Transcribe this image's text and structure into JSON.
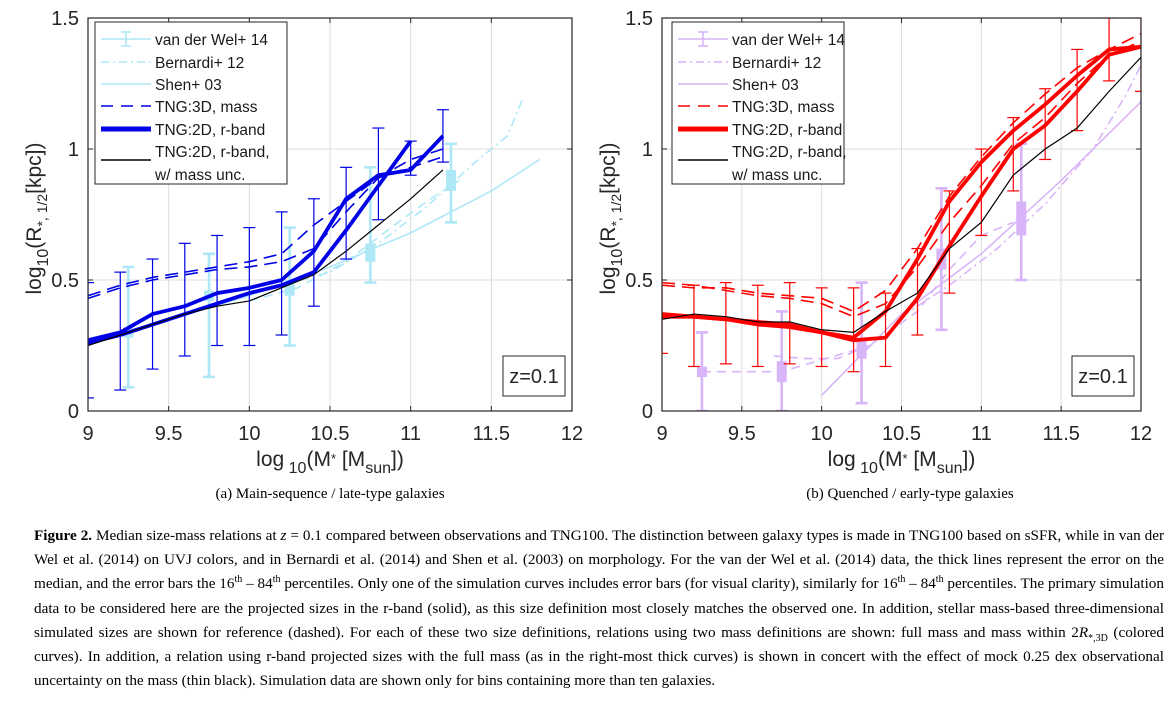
{
  "figure": {
    "subcaptions": [
      "(a) Main-sequence / late-type galaxies",
      "(b) Quenched / early-type galaxies"
    ],
    "caption": {
      "label": "Figure 2.",
      "text_parts": [
        "Median size-mass relations at ",
        "z",
        " = 0.1 compared between observations and TNG100. The distinction between galaxy types is made in TNG100 based on sSFR, while in van der Wel et al. (2014) on UVJ colors, and in Bernardi et al. (2014) and Shen et al. (2003) on morphology. For the van der Wel et al. (2014) data, the thick lines represent the error on the median, and the error bars the 16",
        "th",
        " – 84",
        "th",
        " percentiles. Only one of the simulation curves includes error bars (for visual clarity), similarly for 16",
        "th",
        " – 84",
        "th",
        " percentiles. The primary simulation data to be considered here are the projected sizes in the r-band (solid), as this size definition most closely matches the observed one. In addition, stellar mass-based three-dimensional simulated sizes are shown for reference (dashed). For each of these two size definitions, relations using two mass definitions are shown: full mass and mass within 2",
        "R",
        "*,3D",
        " (colored curves). In addition, a relation using r-band projected sizes with the full mass (as in the right-most thick curves) is shown in concert with the effect of mock 0.25 dex observational uncertainty on the mass (thin black). Simulation data are shown only for bins containing more than ten galaxies."
      ]
    }
  },
  "chart_data": [
    {
      "type": "line",
      "panel": "a",
      "title": "",
      "xlabel": "log10(M* [Msun])",
      "ylabel": "log10(R*,1/2[kpc])",
      "xlim": [
        9,
        12
      ],
      "ylim": [
        0,
        1.5
      ],
      "xticks": [
        "9",
        "9.5",
        "10",
        "10.5",
        "11",
        "11.5",
        "12"
      ],
      "yticks": [
        "0",
        "0.5",
        "1",
        "1.5"
      ],
      "grid": true,
      "legend_position": "top-left",
      "annotation": "z=0.1",
      "colors": {
        "sim": "#0000e6",
        "obs": "#aee8f7",
        "black": "#000000"
      },
      "legend": [
        "van der Wel+ 14",
        "Bernardi+ 12",
        "Shen+ 03",
        "TNG:3D, mass",
        "TNG:2D, r-band",
        "TNG:2D, r-band,",
        "w/ mass unc."
      ],
      "series": [
        {
          "name": "TNG:3D, mass (full)",
          "style": "dashed",
          "x": [
            9.0,
            9.2,
            9.4,
            9.6,
            9.8,
            10.0,
            10.2,
            10.4,
            10.6,
            10.8,
            11.0,
            11.2
          ],
          "y": [
            0.44,
            0.48,
            0.51,
            0.53,
            0.55,
            0.57,
            0.6,
            0.71,
            0.8,
            0.89,
            0.96,
            1.0
          ]
        },
        {
          "name": "TNG:3D, mass (2R)",
          "style": "dashed",
          "x": [
            9.0,
            9.2,
            9.4,
            9.6,
            9.8,
            10.0,
            10.2,
            10.4,
            10.6,
            10.8,
            11.0,
            11.2
          ],
          "y": [
            0.43,
            0.47,
            0.5,
            0.52,
            0.54,
            0.55,
            0.57,
            0.62,
            0.76,
            0.89,
            0.93,
            0.97
          ]
        },
        {
          "name": "TNG:2D, r-band (full)",
          "style": "thick",
          "x": [
            9.0,
            9.2,
            9.4,
            9.6,
            9.8,
            10.0,
            10.2,
            10.4,
            10.6,
            10.8,
            11.0,
            11.2
          ],
          "y": [
            0.27,
            0.3,
            0.37,
            0.4,
            0.45,
            0.47,
            0.5,
            0.61,
            0.81,
            0.9,
            0.92,
            1.05
          ]
        },
        {
          "name": "TNG:2D, r-band (2R)",
          "style": "thick",
          "x": [
            9.0,
            9.2,
            9.4,
            9.6,
            9.8,
            10.0,
            10.2,
            10.4,
            10.6,
            10.8,
            11.0
          ],
          "y": [
            0.26,
            0.29,
            0.33,
            0.37,
            0.41,
            0.45,
            0.48,
            0.53,
            0.69,
            0.86,
            1.03
          ]
        },
        {
          "name": "TNG:2D, r-band, w/ mass unc.",
          "style": "black",
          "x": [
            9.0,
            9.2,
            9.4,
            9.6,
            9.8,
            10.0,
            10.2,
            10.4,
            10.6,
            10.8,
            11.0,
            11.2
          ],
          "y": [
            0.25,
            0.29,
            0.33,
            0.37,
            0.4,
            0.42,
            0.47,
            0.52,
            0.61,
            0.71,
            0.81,
            0.92
          ]
        },
        {
          "name": "Shen+ 03",
          "style": "obs-solid",
          "x": [
            9.0,
            9.5,
            10.0,
            10.5,
            11.0,
            11.5,
            11.8
          ],
          "y": [
            0.26,
            0.35,
            0.44,
            0.55,
            0.68,
            0.84,
            0.96
          ]
        },
        {
          "name": "Bernardi+ 12 (dashed)",
          "style": "obs-dashed",
          "x": [
            10.0,
            10.3,
            10.6,
            10.9,
            11.1,
            11.3
          ],
          "y": [
            0.42,
            0.47,
            0.57,
            0.71,
            0.8,
            0.88
          ]
        },
        {
          "name": "Bernardi+ 12 (dash-dot)",
          "style": "obs-dashdot",
          "x": [
            10.2,
            10.5,
            10.8,
            11.1,
            11.4,
            11.6,
            11.7
          ],
          "y": [
            0.48,
            0.53,
            0.64,
            0.78,
            0.95,
            1.05,
            1.2
          ]
        },
        {
          "name": "van der Wel+ 14",
          "style": "obs-errbar",
          "x": [
            9.25,
            9.75,
            10.25,
            10.75,
            11.25
          ],
          "y": [
            0.3,
            0.44,
            0.47,
            0.6,
            0.88
          ],
          "ylo": [
            0.09,
            0.13,
            0.25,
            0.49,
            0.72
          ],
          "yhi": [
            0.55,
            0.6,
            0.7,
            0.93,
            1.02
          ],
          "mlo": [
            0.28,
            0.42,
            0.44,
            0.57,
            0.84
          ],
          "mhi": [
            0.32,
            0.46,
            0.5,
            0.64,
            0.92
          ]
        },
        {
          "name": "TNG error bars",
          "style": "sim-errbar",
          "x": [
            9.0,
            9.2,
            9.4,
            9.6,
            9.8,
            10.0,
            10.2,
            10.4,
            10.6,
            10.8,
            11.0,
            11.2
          ],
          "ylo": [
            0.05,
            0.08,
            0.16,
            0.21,
            0.25,
            0.25,
            0.29,
            0.4,
            0.58,
            0.73,
            0.9,
            0.95
          ],
          "yhi": [
            0.49,
            0.53,
            0.58,
            0.64,
            0.67,
            0.7,
            0.76,
            0.81,
            0.93,
            1.08,
            1.03,
            1.15
          ]
        }
      ]
    },
    {
      "type": "line",
      "panel": "b",
      "title": "",
      "xlabel": "log10(M* [Msun])",
      "ylabel": "log10(R*,1/2[kpc])",
      "xlim": [
        9,
        12
      ],
      "ylim": [
        0,
        1.5
      ],
      "xticks": [
        "9",
        "9.5",
        "10",
        "10.5",
        "11",
        "11.5",
        "12"
      ],
      "yticks": [
        "0",
        "0.5",
        "1",
        "1.5"
      ],
      "grid": true,
      "legend_position": "top-left",
      "annotation": "z=0.1",
      "colors": {
        "sim": "#ff0000",
        "obs": "#d8b4f8",
        "black": "#000000"
      },
      "legend": [
        "van der Wel+ 14",
        "Bernardi+ 12",
        "Shen+ 03",
        "TNG:3D, mass",
        "TNG:2D, r-band",
        "TNG:2D, r-band,",
        "w/ mass unc."
      ],
      "series": [
        {
          "name": "TNG:3D, mass (full)",
          "style": "dashed",
          "x": [
            9.0,
            9.2,
            9.4,
            9.6,
            9.8,
            10.0,
            10.2,
            10.4,
            10.6,
            10.8,
            11.0,
            11.2,
            11.4,
            11.6,
            11.8,
            12.0
          ],
          "y": [
            0.48,
            0.47,
            0.47,
            0.45,
            0.44,
            0.43,
            0.38,
            0.46,
            0.62,
            0.82,
            0.97,
            1.1,
            1.21,
            1.31,
            1.38,
            1.44
          ]
        },
        {
          "name": "TNG:3D, mass (2R)",
          "style": "dashed",
          "x": [
            9.0,
            9.2,
            9.4,
            9.6,
            9.8,
            10.0,
            10.2,
            10.4,
            10.6,
            10.8,
            11.0,
            11.2,
            11.4,
            11.6,
            11.8,
            12.0
          ],
          "y": [
            0.49,
            0.48,
            0.46,
            0.44,
            0.43,
            0.41,
            0.36,
            0.41,
            0.55,
            0.72,
            0.86,
            1.02,
            1.12,
            1.25,
            1.36,
            1.41
          ]
        },
        {
          "name": "TNG:2D, r-band (full)",
          "style": "thick",
          "x": [
            9.0,
            9.2,
            9.4,
            9.6,
            9.8,
            10.0,
            10.2,
            10.4,
            10.6,
            10.8,
            11.0,
            11.2,
            11.4,
            11.6,
            11.8,
            12.0
          ],
          "y": [
            0.36,
            0.36,
            0.35,
            0.34,
            0.33,
            0.3,
            0.28,
            0.38,
            0.58,
            0.8,
            0.95,
            1.07,
            1.17,
            1.28,
            1.38,
            1.39
          ]
        },
        {
          "name": "TNG:2D, r-band (2R)",
          "style": "thick",
          "x": [
            9.0,
            9.2,
            9.4,
            9.6,
            9.8,
            10.0,
            10.2,
            10.4,
            10.6,
            10.8,
            11.0,
            11.2,
            11.4,
            11.6,
            11.8,
            12.0
          ],
          "y": [
            0.37,
            0.36,
            0.35,
            0.33,
            0.32,
            0.3,
            0.27,
            0.28,
            0.43,
            0.63,
            0.82,
            1.0,
            1.09,
            1.22,
            1.36,
            1.39
          ]
        },
        {
          "name": "TNG:2D, r-band, w/ mass unc.",
          "style": "black",
          "x": [
            9.0,
            9.2,
            9.4,
            9.6,
            9.8,
            10.0,
            10.2,
            10.4,
            10.6,
            10.8,
            11.0,
            11.2,
            11.4,
            11.6,
            11.8,
            12.0
          ],
          "y": [
            0.35,
            0.37,
            0.36,
            0.34,
            0.34,
            0.31,
            0.3,
            0.38,
            0.45,
            0.62,
            0.72,
            0.9,
            1.0,
            1.08,
            1.22,
            1.35
          ]
        },
        {
          "name": "Shen+ 03",
          "style": "obs-solid",
          "x": [
            10.0,
            10.5,
            11.0,
            11.5,
            12.0
          ],
          "y": [
            0.06,
            0.37,
            0.6,
            0.88,
            1.18
          ]
        },
        {
          "name": "Bernardi+ 12 (dashed)",
          "style": "obs-dashed",
          "x": [
            9.7,
            9.9,
            10.1,
            10.3,
            10.6,
            10.8,
            11.0,
            11.2
          ],
          "y": [
            0.21,
            0.2,
            0.2,
            0.25,
            0.38,
            0.54,
            0.67,
            0.72
          ]
        },
        {
          "name": "Bernardi+ 12 (dash-dot)",
          "style": "obs-dashdot",
          "x": [
            10.5,
            10.8,
            11.1,
            11.4,
            11.7,
            11.9,
            12.0
          ],
          "y": [
            0.36,
            0.48,
            0.62,
            0.79,
            1.0,
            1.2,
            1.32
          ]
        },
        {
          "name": "van der Wel+ 14 (dashed link)",
          "style": "obs-dashed",
          "x": [
            9.25,
            9.75,
            10.25
          ],
          "y": [
            0.15,
            0.15,
            0.24
          ]
        },
        {
          "name": "van der Wel+ 14",
          "style": "obs-errbar",
          "x": [
            9.25,
            9.75,
            10.25,
            10.75,
            11.25
          ],
          "y": [
            0.15,
            0.15,
            0.24,
            0.58,
            0.74
          ],
          "ylo": [
            0.0,
            0.0,
            0.03,
            0.31,
            0.5
          ],
          "yhi": [
            0.3,
            0.38,
            0.49,
            0.85,
            1.02
          ],
          "mlo": [
            0.13,
            0.11,
            0.2,
            0.54,
            0.67
          ],
          "mhi": [
            0.17,
            0.19,
            0.28,
            0.62,
            0.8
          ]
        },
        {
          "name": "TNG error bars",
          "style": "sim-errbar",
          "x": [
            9.0,
            9.2,
            9.4,
            9.6,
            9.8,
            10.0,
            10.2,
            10.4,
            10.6,
            10.8,
            11.0,
            11.2,
            11.4,
            11.6,
            11.8,
            12.0
          ],
          "ylo": [
            0.22,
            0.17,
            0.18,
            0.17,
            0.18,
            0.17,
            0.15,
            0.17,
            0.29,
            0.45,
            0.67,
            0.84,
            0.96,
            1.07,
            1.26,
            1.22
          ],
          "yhi": [
            0.48,
            0.48,
            0.49,
            0.48,
            0.49,
            0.47,
            0.47,
            0.45,
            0.62,
            0.84,
            1.0,
            1.12,
            1.23,
            1.38,
            1.5,
            1.5
          ]
        }
      ]
    }
  ]
}
